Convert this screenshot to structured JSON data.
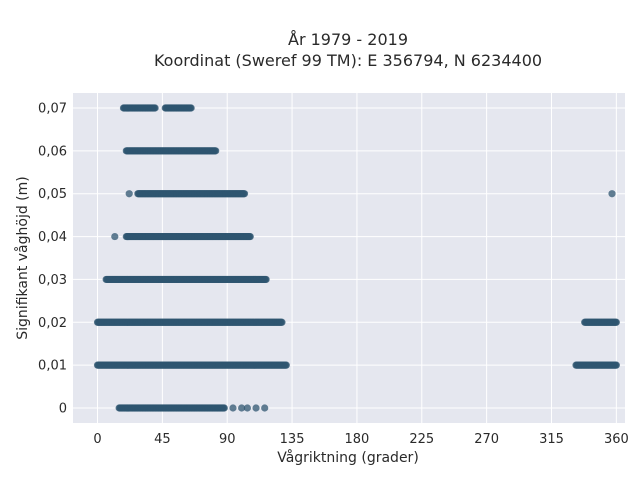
{
  "chart_data": {
    "type": "scatter",
    "title_lines": [
      "År 1979 - 2019",
      "Koordinat (Sweref 99 TM): E 356794, N 6234400"
    ],
    "xlabel": "Vågriktning (grader)",
    "ylabel": "Signifikant våghöjd (m)",
    "xlim": [
      -17,
      366
    ],
    "ylim": [
      -0.0035,
      0.0735
    ],
    "x_ticks": [
      0,
      45,
      90,
      135,
      180,
      225,
      270,
      315,
      360
    ],
    "x_tick_labels": [
      "0",
      "45",
      "90",
      "135",
      "180",
      "225",
      "270",
      "315",
      "360"
    ],
    "y_ticks": [
      0,
      0.01,
      0.02,
      0.03,
      0.04,
      0.05,
      0.06,
      0.07
    ],
    "y_tick_labels": [
      "0",
      "0,01",
      "0,02",
      "0,03",
      "0,04",
      "0,05",
      "0,06",
      "0,07"
    ],
    "grid": true,
    "legend": "none",
    "marker_color": "#2f5570",
    "plot_bg_color": "#e5e7ef",
    "point_groups": [
      {
        "y": 0.07,
        "x_segments": [
          [
            18,
            40
          ],
          [
            47,
            65
          ]
        ]
      },
      {
        "y": 0.06,
        "x_segments": [
          [
            20,
            82
          ]
        ]
      },
      {
        "y": 0.05,
        "x_segments": [
          [
            28,
            102
          ]
        ],
        "x_points": [
          22,
          357
        ]
      },
      {
        "y": 0.04,
        "x_segments": [
          [
            20,
            106
          ]
        ],
        "x_points": [
          12
        ]
      },
      {
        "y": 0.03,
        "x_segments": [
          [
            6,
            117
          ]
        ]
      },
      {
        "y": 0.02,
        "x_segments": [
          [
            0,
            128
          ],
          [
            338,
            360
          ]
        ]
      },
      {
        "y": 0.01,
        "x_segments": [
          [
            0,
            131
          ],
          [
            332,
            360
          ]
        ]
      },
      {
        "y": 0.0,
        "x_segments": [
          [
            15,
            88
          ]
        ],
        "x_points": [
          94,
          100,
          104,
          110,
          116
        ]
      }
    ]
  }
}
